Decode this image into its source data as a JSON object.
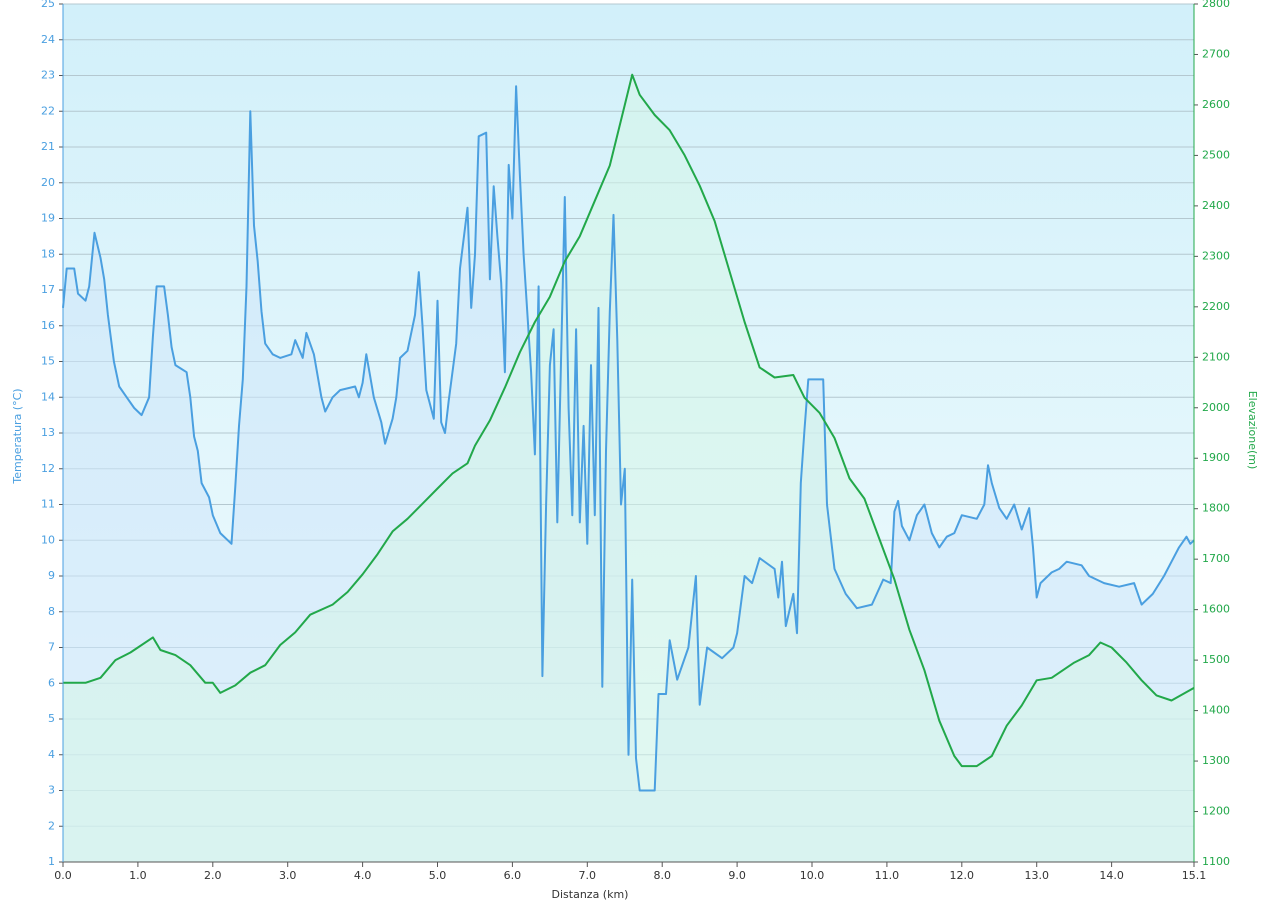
{
  "chart_data": {
    "type": "line",
    "x_label": "Distanza  (km)",
    "y_label": "Temperatura (°C)",
    "y2_label": "Elevazione(m)",
    "xlim": [
      0,
      15.1
    ],
    "xticks": [
      {
        "value": 0,
        "label": "0.0"
      },
      {
        "value": 1,
        "label": "1.0"
      },
      {
        "value": 2,
        "label": "2.0"
      },
      {
        "value": 3,
        "label": "3.0"
      },
      {
        "value": 4,
        "label": "4.0"
      },
      {
        "value": 5,
        "label": "5.0"
      },
      {
        "value": 6,
        "label": "6.0"
      },
      {
        "value": 7,
        "label": "7.0"
      },
      {
        "value": 8,
        "label": "8.0"
      },
      {
        "value": 9,
        "label": "9.0"
      },
      {
        "value": 10,
        "label": "10.0"
      },
      {
        "value": 11,
        "label": "11.0"
      },
      {
        "value": 12,
        "label": "12.0"
      },
      {
        "value": 13,
        "label": "13.0"
      },
      {
        "value": 14,
        "label": "14.0"
      },
      {
        "value": 15.1,
        "label": "15.1"
      }
    ],
    "ylim": [
      1,
      25
    ],
    "yticks": [
      1,
      2,
      3,
      4,
      5,
      6,
      7,
      8,
      9,
      10,
      11,
      12,
      13,
      14,
      15,
      16,
      17,
      18,
      19,
      20,
      21,
      22,
      23,
      24,
      25
    ],
    "y2lim": [
      1100,
      2800
    ],
    "y2ticks": [
      1100,
      1200,
      1300,
      1400,
      1500,
      1600,
      1700,
      1800,
      1900,
      2000,
      2100,
      2200,
      2300,
      2400,
      2500,
      2600,
      2700,
      2800
    ],
    "grid": true,
    "series": [
      {
        "color": "#4a9fe0",
        "fill": "#cde6fa",
        "axis": "y",
        "x": [
          0,
          0.05,
          0.15,
          0.2,
          0.3,
          0.35,
          0.42,
          0.5,
          0.55,
          0.6,
          0.68,
          0.75,
          0.85,
          0.95,
          1.05,
          1.15,
          1.2,
          1.25,
          1.35,
          1.4,
          1.45,
          1.5,
          1.65,
          1.7,
          1.75,
          1.8,
          1.85,
          1.95,
          2.0,
          2.1,
          2.25,
          2.3,
          2.35,
          2.4,
          2.45,
          2.5,
          2.55,
          2.6,
          2.65,
          2.7,
          2.8,
          2.9,
          3.05,
          3.1,
          3.2,
          3.25,
          3.35,
          3.45,
          3.5,
          3.6,
          3.7,
          3.9,
          3.95,
          4.0,
          4.05,
          4.1,
          4.15,
          4.25,
          4.3,
          4.4,
          4.45,
          4.5,
          4.6,
          4.7,
          4.75,
          4.8,
          4.85,
          4.95,
          5.0,
          5.05,
          5.1,
          5.15,
          5.25,
          5.3,
          5.4,
          5.45,
          5.5,
          5.55,
          5.65,
          5.7,
          5.75,
          5.8,
          5.85,
          5.9,
          5.95,
          6.0,
          6.05,
          6.1,
          6.15,
          6.25,
          6.3,
          6.35,
          6.4,
          6.45,
          6.5,
          6.55,
          6.6,
          6.7,
          6.75,
          6.8,
          6.85,
          6.9,
          6.95,
          7.0,
          7.05,
          7.1,
          7.15,
          7.2,
          7.25,
          7.3,
          7.35,
          7.4,
          7.45,
          7.5,
          7.55,
          7.6,
          7.65,
          7.7,
          7.9,
          7.95,
          8.05,
          8.1,
          8.2,
          8.35,
          8.45,
          8.5,
          8.6,
          8.8,
          8.95,
          9.0,
          9.1,
          9.2,
          9.3,
          9.5,
          9.55,
          9.6,
          9.65,
          9.75,
          9.8,
          9.85,
          9.9,
          9.95,
          10.15,
          10.2,
          10.3,
          10.45,
          10.6,
          10.8,
          10.95,
          11.05,
          11.1,
          11.15,
          11.2,
          11.3,
          11.4,
          11.5,
          11.6,
          11.7,
          11.8,
          11.9,
          12.0,
          12.2,
          12.3,
          12.35,
          12.4,
          12.5,
          12.6,
          12.7,
          12.8,
          12.9,
          12.95,
          13.0,
          13.05,
          13.2,
          13.3,
          13.4,
          13.6,
          13.7,
          13.9,
          14.1,
          14.3,
          14.4,
          14.55,
          14.7,
          14.8,
          14.9,
          15.0,
          15.05,
          15.1
        ],
        "values": [
          16.5,
          17.6,
          17.6,
          16.9,
          16.7,
          17.1,
          18.6,
          17.9,
          17.3,
          16.3,
          15.0,
          14.3,
          14.0,
          13.7,
          13.5,
          14.0,
          15.7,
          17.1,
          17.1,
          16.3,
          15.4,
          14.9,
          14.7,
          14.0,
          12.9,
          12.5,
          11.6,
          11.2,
          10.7,
          10.2,
          9.9,
          11.5,
          13.2,
          14.5,
          17.1,
          22.0,
          18.8,
          17.8,
          16.4,
          15.5,
          15.2,
          15.1,
          15.2,
          15.6,
          15.1,
          15.8,
          15.2,
          14.0,
          13.6,
          14.0,
          14.2,
          14.3,
          14.0,
          14.4,
          15.2,
          14.6,
          14.0,
          13.3,
          12.7,
          13.4,
          14.0,
          15.1,
          15.3,
          16.3,
          17.5,
          16.0,
          14.2,
          13.4,
          16.7,
          13.3,
          13.0,
          13.9,
          15.5,
          17.6,
          19.3,
          16.5,
          18.0,
          21.3,
          21.4,
          17.3,
          19.9,
          18.5,
          17.2,
          14.7,
          20.5,
          19.0,
          22.7,
          20.2,
          18.0,
          14.7,
          12.4,
          17.1,
          6.2,
          11.0,
          14.9,
          15.9,
          10.5,
          19.6,
          13.7,
          10.7,
          15.9,
          10.5,
          13.2,
          9.9,
          14.9,
          10.7,
          16.5,
          5.9,
          12.5,
          16.4,
          19.1,
          15.6,
          11.0,
          12.0,
          4.0,
          8.9,
          3.9,
          3.0,
          3.0,
          5.7,
          5.7,
          7.2,
          6.1,
          7.0,
          9.0,
          5.4,
          7.0,
          6.7,
          7.0,
          7.4,
          9.0,
          8.8,
          9.5,
          9.2,
          8.4,
          9.4,
          7.6,
          8.5,
          7.4,
          11.6,
          13.1,
          14.5,
          14.5,
          11.0,
          9.2,
          8.5,
          8.1,
          8.2,
          8.9,
          8.8,
          10.8,
          11.1,
          10.4,
          10.0,
          10.7,
          11.0,
          10.2,
          9.8,
          10.1,
          10.2,
          10.7,
          10.6,
          11.0,
          12.1,
          11.6,
          10.9,
          10.6,
          11.0,
          10.3,
          10.9,
          9.8,
          8.4,
          8.8,
          9.1,
          9.2,
          9.4,
          9.3,
          9.0,
          8.8,
          8.7,
          8.8,
          8.2,
          8.5,
          9.0,
          9.4,
          9.8,
          10.1,
          9.9,
          10.0
        ]
      },
      {
        "color": "#22a84a",
        "fill": "#d6f5e8",
        "axis": "y2",
        "x": [
          0,
          0.3,
          0.5,
          0.7,
          0.9,
          1.0,
          1.2,
          1.3,
          1.5,
          1.7,
          1.9,
          2.0,
          2.1,
          2.3,
          2.5,
          2.7,
          2.9,
          3.1,
          3.3,
          3.6,
          3.8,
          4.0,
          4.2,
          4.4,
          4.6,
          4.8,
          5.0,
          5.2,
          5.4,
          5.5,
          5.7,
          5.9,
          6.1,
          6.3,
          6.5,
          6.7,
          6.9,
          7.1,
          7.3,
          7.5,
          7.6,
          7.7,
          7.9,
          8.1,
          8.3,
          8.5,
          8.7,
          8.9,
          9.1,
          9.3,
          9.5,
          9.75,
          9.9,
          10.1,
          10.3,
          10.5,
          10.7,
          10.9,
          11.1,
          11.3,
          11.5,
          11.7,
          11.9,
          12.0,
          12.2,
          12.4,
          12.6,
          12.8,
          13.0,
          13.2,
          13.5,
          13.7,
          13.85,
          14.0,
          14.2,
          14.4,
          14.6,
          14.8,
          15.1
        ],
        "values": [
          1455,
          1455,
          1465,
          1500,
          1515,
          1525,
          1545,
          1520,
          1510,
          1490,
          1455,
          1455,
          1435,
          1450,
          1475,
          1490,
          1530,
          1555,
          1590,
          1610,
          1635,
          1670,
          1710,
          1755,
          1780,
          1810,
          1840,
          1870,
          1890,
          1925,
          1975,
          2040,
          2110,
          2170,
          2220,
          2290,
          2340,
          2410,
          2480,
          2600,
          2660,
          2620,
          2580,
          2550,
          2500,
          2440,
          2370,
          2270,
          2170,
          2080,
          2060,
          2065,
          2020,
          1990,
          1940,
          1860,
          1820,
          1740,
          1660,
          1560,
          1480,
          1380,
          1310,
          1290,
          1290,
          1310,
          1370,
          1410,
          1460,
          1465,
          1495,
          1510,
          1535,
          1525,
          1495,
          1460,
          1430,
          1420,
          1445
        ]
      }
    ]
  }
}
